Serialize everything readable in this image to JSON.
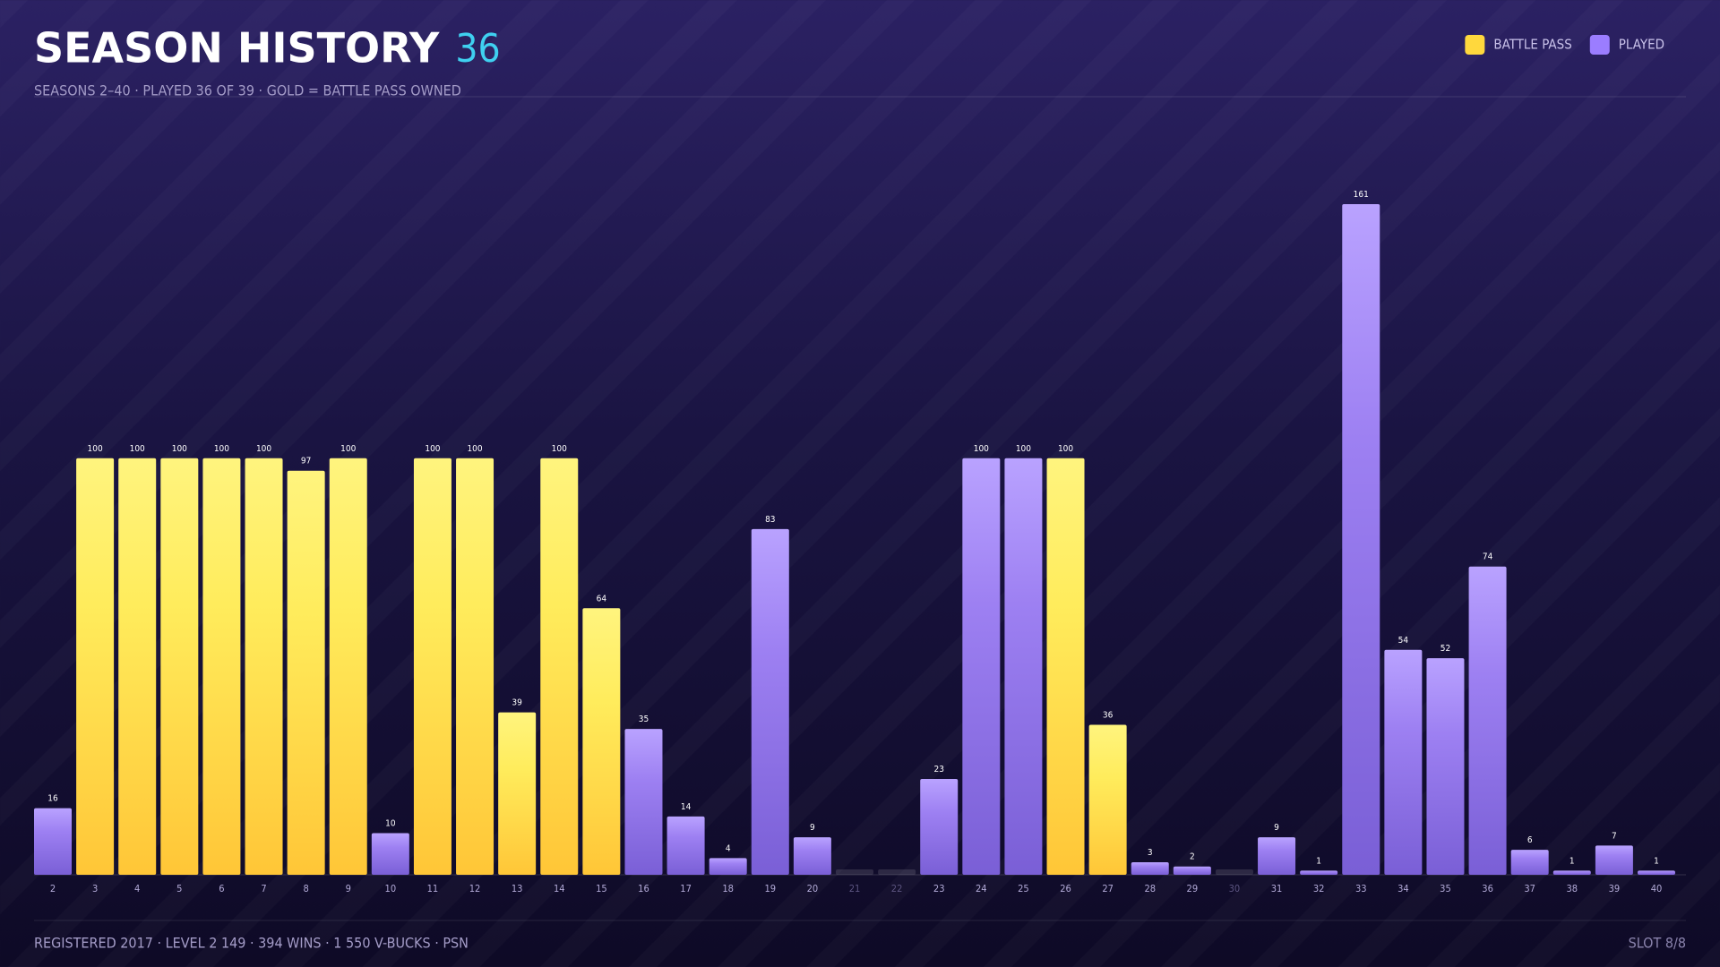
{
  "chart_data": {
    "type": "bar",
    "title": "SEASON HISTORY",
    "title_count": "36",
    "subtitle": "SEASONS 2–40 · PLAYED 36 OF 39 · GOLD = BATTLE PASS OWNED",
    "footer": "REGISTERED 2017 · LEVEL 2 149 · 394 WINS · 1 550 V-BUCKS · PSN",
    "footer_right": "SLOT 8/8",
    "legend": "top-right",
    "categories": [
      "2",
      "3",
      "4",
      "5",
      "6",
      "7",
      "8",
      "9",
      "10",
      "11",
      "12",
      "13",
      "14",
      "15",
      "16",
      "17",
      "18",
      "19",
      "20",
      "21",
      "22",
      "23",
      "24",
      "25",
      "26",
      "27",
      "28",
      "29",
      "30",
      "31",
      "32",
      "33",
      "34",
      "35",
      "36",
      "37",
      "38",
      "39",
      "40"
    ],
    "series": [
      {
        "name": "BATTLE PASS",
        "color": "#ffd83d",
        "values": [
          null,
          100,
          100,
          100,
          100,
          100,
          97,
          100,
          null,
          100,
          100,
          39,
          100,
          64,
          null,
          null,
          null,
          null,
          null,
          null,
          null,
          null,
          null,
          null,
          100,
          36,
          null,
          null,
          null,
          null,
          null,
          null,
          null,
          null,
          null,
          null,
          null,
          null,
          null
        ]
      },
      {
        "name": "PLAYED",
        "color": "#9b7dff",
        "values": [
          16,
          null,
          null,
          null,
          null,
          null,
          null,
          null,
          10,
          null,
          null,
          null,
          null,
          null,
          35,
          14,
          4,
          83,
          9,
          null,
          null,
          23,
          100,
          100,
          null,
          null,
          3,
          2,
          null,
          9,
          1,
          161,
          54,
          52,
          74,
          6,
          1,
          7,
          1
        ]
      }
    ]
  }
}
